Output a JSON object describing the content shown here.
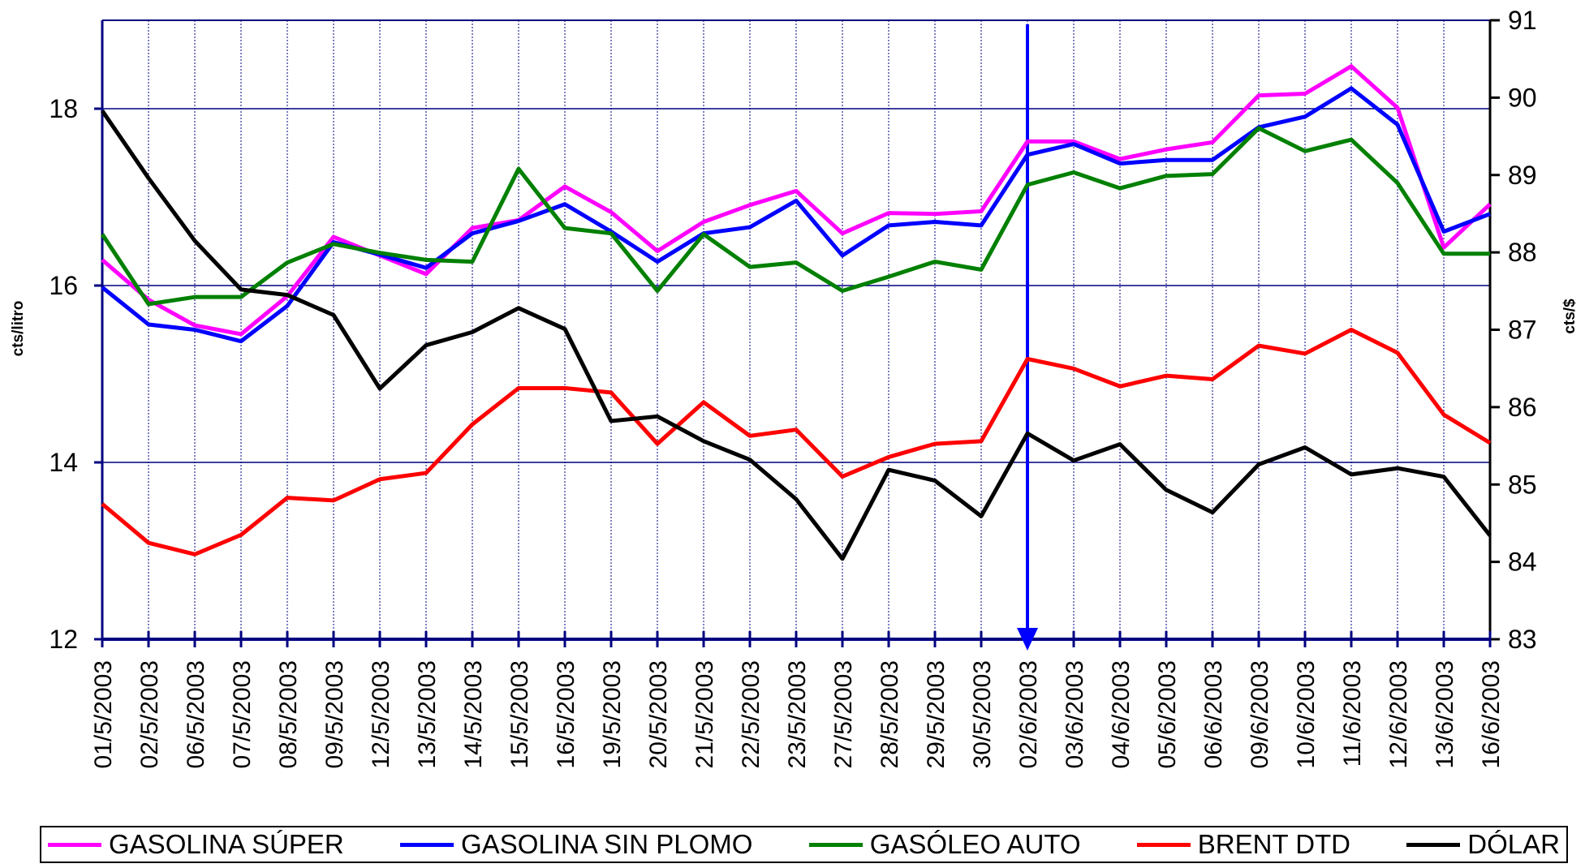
{
  "chart_data": {
    "type": "line",
    "y_label": "cts/litro",
    "y2_label": "cts/$",
    "categories": [
      "01/5/2003",
      "02/5/2003",
      "06/5/2003",
      "07/5/2003",
      "08/5/2003",
      "09/5/2003",
      "12/5/2003",
      "13/5/2003",
      "14/5/2003",
      "15/5/2003",
      "16/5/2003",
      "19/5/2003",
      "20/5/2003",
      "21/5/2003",
      "22/5/2003",
      "23/5/2003",
      "27/5/2003",
      "28/5/2003",
      "29/5/2003",
      "30/5/2003",
      "02/6/2003",
      "03/6/2003",
      "04/6/2003",
      "05/6/2003",
      "06/6/2003",
      "09/6/2003",
      "10/6/2003",
      "11/6/2003",
      "12/6/2003",
      "13/6/2003",
      "16/6/2003"
    ],
    "series": [
      {
        "name": "GASOLINA SÚPER",
        "color": "#ff00ff",
        "values": [
          16.29,
          15.84,
          15.55,
          15.45,
          15.88,
          16.55,
          16.34,
          16.13,
          16.65,
          16.74,
          17.12,
          16.83,
          16.39,
          16.72,
          16.91,
          17.07,
          16.59,
          16.82,
          16.81,
          16.84,
          17.63,
          17.63,
          17.43,
          17.54,
          17.62,
          18.15,
          18.17,
          18.48,
          18.01,
          16.43,
          16.92
        ]
      },
      {
        "name": "GASOLINA SIN PLOMO",
        "color": "#0000ff",
        "values": [
          15.98,
          15.56,
          15.5,
          15.37,
          15.77,
          16.49,
          16.35,
          16.2,
          16.59,
          16.73,
          16.92,
          16.61,
          16.27,
          16.59,
          16.66,
          16.96,
          16.34,
          16.68,
          16.72,
          16.68,
          17.48,
          17.6,
          17.38,
          17.42,
          17.42,
          17.79,
          17.91,
          18.23,
          17.82,
          16.61,
          16.81
        ]
      },
      {
        "name": "GASÓLEO AUTO",
        "color": "#008000",
        "values": [
          16.58,
          15.79,
          15.87,
          15.87,
          16.26,
          16.47,
          16.37,
          16.29,
          16.27,
          17.32,
          16.65,
          16.59,
          15.94,
          16.58,
          16.21,
          16.26,
          15.94,
          16.1,
          16.27,
          16.18,
          17.14,
          17.28,
          17.1,
          17.24,
          17.26,
          17.78,
          17.52,
          17.65,
          17.16,
          16.36,
          16.36
        ]
      },
      {
        "name": "BRENT DTD",
        "color": "#ff0000",
        "values": [
          13.53,
          13.09,
          12.96,
          13.18,
          13.6,
          13.57,
          13.81,
          13.88,
          14.43,
          14.84,
          14.84,
          14.79,
          14.21,
          14.68,
          14.3,
          14.37,
          13.84,
          14.06,
          14.21,
          14.24,
          15.17,
          15.06,
          14.86,
          14.98,
          14.94,
          15.32,
          15.23,
          15.5,
          15.24,
          14.54,
          14.22
        ]
      },
      {
        "name": "DÓLAR",
        "color": "#000000",
        "axis": "y2",
        "values": [
          89.83,
          88.96,
          88.15,
          87.52,
          87.45,
          87.19,
          86.24,
          86.8,
          86.97,
          87.28,
          87.01,
          85.82,
          85.88,
          85.56,
          85.32,
          84.81,
          84.04,
          85.19,
          85.05,
          84.59,
          85.66,
          85.31,
          85.52,
          84.93,
          84.64,
          85.26,
          85.48,
          85.13,
          85.21,
          85.1,
          84.34
        ]
      }
    ],
    "ylim": [
      12,
      19
    ],
    "yticks": [
      12,
      14,
      16,
      18
    ],
    "y2lim": [
      83,
      91
    ],
    "y2ticks": [
      83,
      84,
      85,
      86,
      87,
      88,
      89,
      90,
      91
    ],
    "grid": true
  }
}
